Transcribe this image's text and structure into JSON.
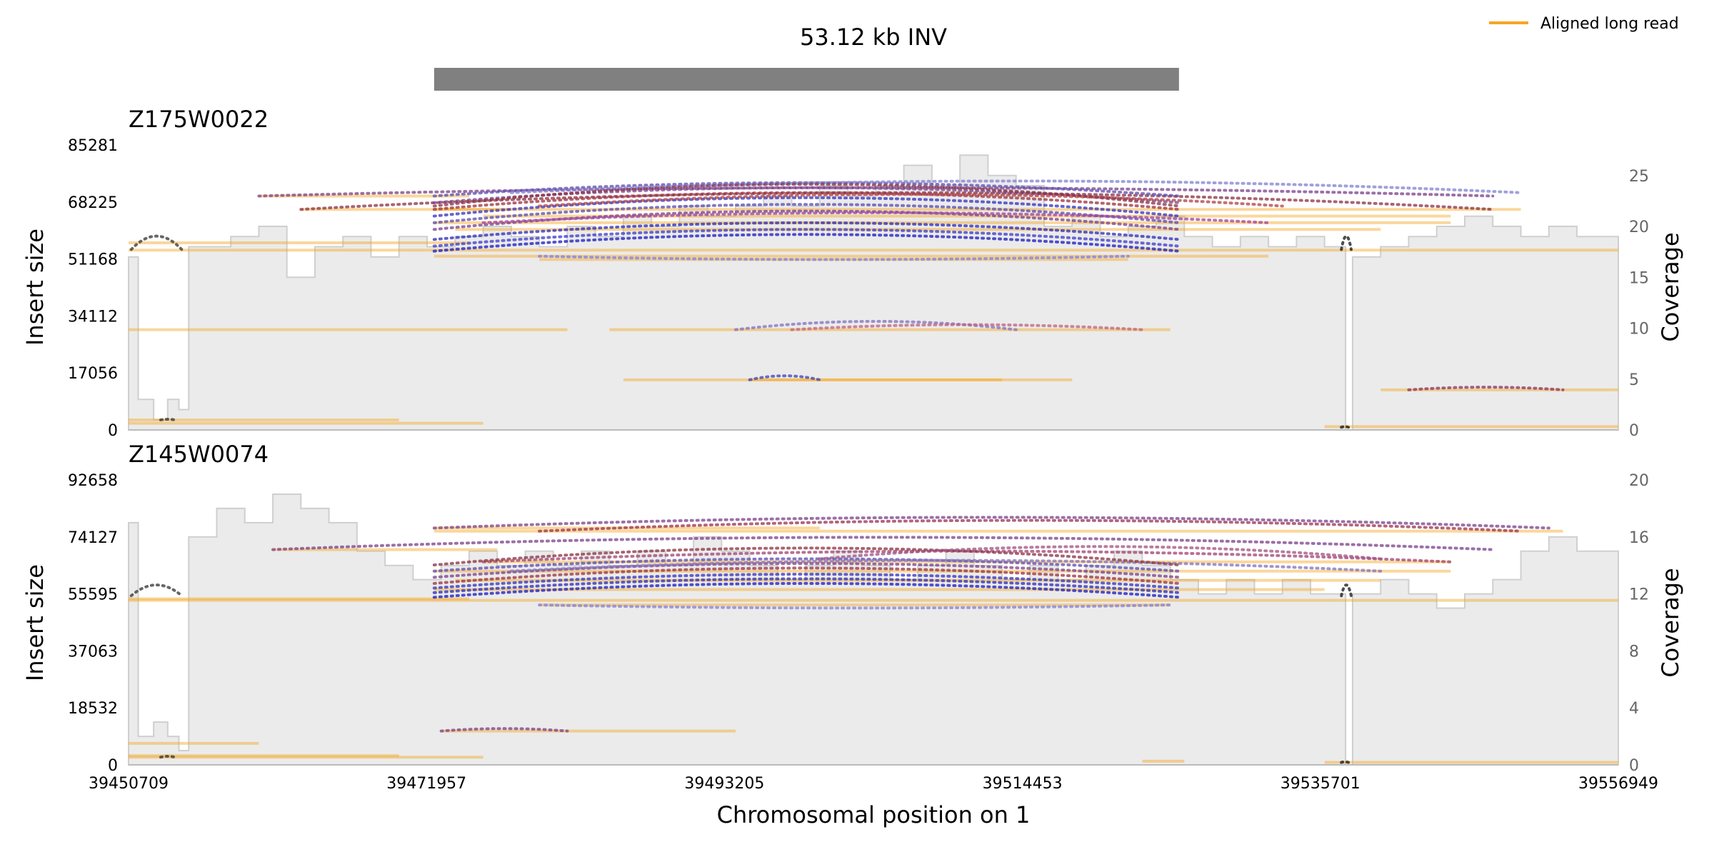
{
  "chart_data": {
    "type": "genome-sv-plot",
    "title": "53.12 kb INV",
    "sv_region": {
      "start": 39472500,
      "end": 39525620
    },
    "legend": [
      {
        "label": "Aligned long read",
        "color": "#f5a623"
      }
    ],
    "xlabel": "Chromosomal position on 1",
    "x_range": [
      39450709,
      39556949
    ],
    "x_ticks": [
      "39450709",
      "39471957",
      "39493205",
      "39514453",
      "39535701",
      "39556949"
    ],
    "panels": [
      {
        "sample": "Z175W0022",
        "ylabel_left": "Insert size",
        "ylabel_right": "Coverage",
        "insert_ticks": [
          "0",
          "17056",
          "34112",
          "51168",
          "68225",
          "85281"
        ],
        "insert_max": 85281,
        "coverage_ticks": [
          "0",
          "5",
          "10",
          "15",
          "20",
          "25"
        ],
        "coverage_max": 28,
        "coverage": [
          [
            39450709,
            17
          ],
          [
            39451400,
            3
          ],
          [
            39452500,
            1
          ],
          [
            39453500,
            3
          ],
          [
            39454300,
            2
          ],
          [
            39455000,
            18
          ],
          [
            39458000,
            19
          ],
          [
            39460000,
            20
          ],
          [
            39462000,
            15
          ],
          [
            39464000,
            18
          ],
          [
            39466000,
            19
          ],
          [
            39468000,
            17
          ],
          [
            39470000,
            19
          ],
          [
            39472000,
            18
          ],
          [
            39474000,
            19
          ],
          [
            39476000,
            20
          ],
          [
            39478000,
            19
          ],
          [
            39480000,
            18
          ],
          [
            39482000,
            20
          ],
          [
            39484000,
            19
          ],
          [
            39486000,
            21
          ],
          [
            39488000,
            20
          ],
          [
            39490000,
            22
          ],
          [
            39492000,
            21
          ],
          [
            39494000,
            22
          ],
          [
            39496000,
            23
          ],
          [
            39498000,
            22
          ],
          [
            39500000,
            24
          ],
          [
            39502000,
            23
          ],
          [
            39504000,
            24
          ],
          [
            39506000,
            26
          ],
          [
            39508000,
            24
          ],
          [
            39510000,
            27
          ],
          [
            39512000,
            25
          ],
          [
            39514000,
            24
          ],
          [
            39516000,
            20
          ],
          [
            39518000,
            21
          ],
          [
            39520000,
            19
          ],
          [
            39522000,
            20
          ],
          [
            39524000,
            21
          ],
          [
            39526000,
            19
          ],
          [
            39528000,
            18
          ],
          [
            39530000,
            19
          ],
          [
            39532000,
            18
          ],
          [
            39534000,
            19
          ],
          [
            39536000,
            18
          ],
          [
            39537500,
            0
          ],
          [
            39538000,
            17
          ],
          [
            39540000,
            18
          ],
          [
            39542000,
            19
          ],
          [
            39544000,
            20
          ],
          [
            39546000,
            21
          ],
          [
            39548000,
            20
          ],
          [
            39550000,
            19
          ],
          [
            39552000,
            20
          ],
          [
            39554000,
            19
          ],
          [
            39556949,
            18
          ]
        ],
        "reads": [
          [
            39450709,
            39475000,
            56000
          ],
          [
            39450709,
            39556949,
            53800
          ],
          [
            39450709,
            39470000,
            3000
          ],
          [
            39450709,
            39476000,
            2000
          ],
          [
            39450709,
            39482000,
            30000
          ],
          [
            39460000,
            39475000,
            70000
          ],
          [
            39463000,
            39478000,
            66000
          ],
          [
            39472500,
            39545000,
            62000
          ],
          [
            39472500,
            39550000,
            66000
          ],
          [
            39474000,
            39540000,
            60000
          ],
          [
            39480000,
            39522000,
            51000
          ],
          [
            39485000,
            39525000,
            30000
          ],
          [
            39486000,
            39513000,
            15000
          ],
          [
            39495000,
            39518000,
            15000
          ],
          [
            39536000,
            39556949,
            1000
          ],
          [
            39540000,
            39556949,
            12000
          ],
          [
            39472500,
            39532000,
            52000
          ],
          [
            39476000,
            39545000,
            64000
          ]
        ],
        "arcs": [
          [
            39460000,
            39548000,
            70000,
            72500,
            "#7a3f8a"
          ],
          [
            39463000,
            39548000,
            66000,
            71000,
            "#8a3040"
          ],
          [
            39472500,
            39525620,
            70000,
            74000,
            "#5a4ab0"
          ],
          [
            39472500,
            39525620,
            68000,
            72500,
            "#7a3f8a"
          ],
          [
            39472500,
            39525620,
            66000,
            71000,
            "#9a3040"
          ],
          [
            39472500,
            39525620,
            64000,
            69500,
            "#3030c0"
          ],
          [
            39472500,
            39525620,
            62000,
            67500,
            "#5a4ab0"
          ],
          [
            39472500,
            39525620,
            60000,
            65500,
            "#7a3f8a"
          ],
          [
            39472500,
            39525620,
            57000,
            62000,
            "#2a2ab8"
          ],
          [
            39472500,
            39525620,
            55000,
            60000,
            "#3a3ac8"
          ],
          [
            39472500,
            39525620,
            53500,
            58500,
            "#1818c0"
          ],
          [
            39478000,
            39550000,
            71000,
            74500,
            "#8080d0"
          ],
          [
            39476000,
            39532000,
            62000,
            65000,
            "#a040a0"
          ],
          [
            39480000,
            39522000,
            52000,
            51000,
            "#8080e0"
          ],
          [
            39494000,
            39514000,
            30000,
            32500,
            "#8070c0"
          ],
          [
            39498000,
            39523000,
            30000,
            31500,
            "#c06080"
          ],
          [
            39495000,
            39500000,
            15000,
            16200,
            "#4040b0"
          ],
          [
            39542000,
            39553000,
            12000,
            12800,
            "#8a3060"
          ],
          [
            39450900,
            39454500,
            54000,
            58000,
            "#333333"
          ],
          [
            39537200,
            39537900,
            54000,
            58000,
            "#111111"
          ],
          [
            39453000,
            39454000,
            3000,
            3200,
            "#333333"
          ],
          [
            39537200,
            39537700,
            800,
            1000,
            "#111111"
          ],
          [
            39472500,
            39525620,
            67000,
            73500,
            "#8a3040"
          ],
          [
            39480000,
            39533000,
            67000,
            70500,
            "#b04040"
          ]
        ]
      },
      {
        "sample": "Z145W0074",
        "ylabel_left": "Insert size",
        "ylabel_right": "Coverage",
        "insert_ticks": [
          "0",
          "18532",
          "37063",
          "55595",
          "74127",
          "92658"
        ],
        "insert_max": 92658,
        "coverage_ticks": [
          "0",
          "4",
          "8",
          "12",
          "16",
          "20"
        ],
        "coverage_max": 20,
        "coverage": [
          [
            39450709,
            17
          ],
          [
            39451400,
            2
          ],
          [
            39452500,
            3
          ],
          [
            39453500,
            2
          ],
          [
            39454300,
            1
          ],
          [
            39455000,
            16
          ],
          [
            39457000,
            18
          ],
          [
            39459000,
            17
          ],
          [
            39461000,
            19
          ],
          [
            39463000,
            18
          ],
          [
            39465000,
            17
          ],
          [
            39467000,
            15
          ],
          [
            39469000,
            14
          ],
          [
            39471000,
            13
          ],
          [
            39473000,
            14
          ],
          [
            39475000,
            15
          ],
          [
            39477000,
            14
          ],
          [
            39479000,
            15
          ],
          [
            39481000,
            14
          ],
          [
            39483000,
            15
          ],
          [
            39485000,
            14
          ],
          [
            39487000,
            15
          ],
          [
            39489000,
            14
          ],
          [
            39491000,
            16
          ],
          [
            39493000,
            15
          ],
          [
            39495000,
            14
          ],
          [
            39497000,
            13
          ],
          [
            39499000,
            14
          ],
          [
            39501000,
            15
          ],
          [
            39503000,
            14
          ],
          [
            39505000,
            13
          ],
          [
            39507000,
            14
          ],
          [
            39509000,
            15
          ],
          [
            39511000,
            14
          ],
          [
            39513000,
            13
          ],
          [
            39515000,
            14
          ],
          [
            39517000,
            13
          ],
          [
            39519000,
            14
          ],
          [
            39521000,
            15
          ],
          [
            39523000,
            14
          ],
          [
            39525000,
            13
          ],
          [
            39527000,
            12
          ],
          [
            39529000,
            13
          ],
          [
            39531000,
            12
          ],
          [
            39533000,
            13
          ],
          [
            39535000,
            12
          ],
          [
            39537500,
            0
          ],
          [
            39538000,
            12
          ],
          [
            39540000,
            13
          ],
          [
            39542000,
            12
          ],
          [
            39544000,
            11
          ],
          [
            39546000,
            12
          ],
          [
            39548000,
            13
          ],
          [
            39550000,
            15
          ],
          [
            39552000,
            16
          ],
          [
            39554000,
            15
          ],
          [
            39556949,
            14
          ]
        ],
        "reads": [
          [
            39450709,
            39475000,
            54000
          ],
          [
            39450709,
            39556949,
            53500
          ],
          [
            39450709,
            39470000,
            3000
          ],
          [
            39450709,
            39476000,
            2500
          ],
          [
            39450709,
            39460000,
            7000
          ],
          [
            39461000,
            39477000,
            70000
          ],
          [
            39472500,
            39500000,
            77000
          ],
          [
            39472500,
            39553000,
            76000
          ],
          [
            39472500,
            39545000,
            63000
          ],
          [
            39474000,
            39540000,
            60000
          ],
          [
            39480000,
            39525000,
            52000
          ],
          [
            39473000,
            39494000,
            11000
          ],
          [
            39536000,
            39556949,
            800
          ],
          [
            39523000,
            39526000,
            1200
          ],
          [
            39472500,
            39536000,
            57000
          ],
          [
            39476000,
            39545000,
            66000
          ]
        ],
        "arcs": [
          [
            39472500,
            39552000,
            77000,
            80500,
            "#7a3f8a"
          ],
          [
            39480000,
            39550000,
            76000,
            79500,
            "#9a3050"
          ],
          [
            39461000,
            39548000,
            70000,
            74000,
            "#7a3f8a"
          ],
          [
            39472500,
            39525620,
            63000,
            67000,
            "#5a4ab0"
          ],
          [
            39472500,
            39525620,
            61000,
            65500,
            "#7a3f8a"
          ],
          [
            39472500,
            39525620,
            59000,
            64000,
            "#9a3040"
          ],
          [
            39472500,
            39525620,
            57500,
            62000,
            "#3030c0"
          ],
          [
            39472500,
            39525620,
            56000,
            60500,
            "#2a2ab8"
          ],
          [
            39472500,
            39525620,
            54500,
            59000,
            "#1818c0"
          ],
          [
            39476000,
            39545000,
            66000,
            69500,
            "#a04070"
          ],
          [
            39478000,
            39540000,
            63000,
            66500,
            "#8070c0"
          ],
          [
            39480000,
            39525000,
            52000,
            51000,
            "#8080e0"
          ],
          [
            39473000,
            39482000,
            11000,
            11800,
            "#7a3f8a"
          ],
          [
            39450900,
            39454500,
            55000,
            58500,
            "#333333"
          ],
          [
            39537200,
            39537900,
            55000,
            58500,
            "#111111"
          ],
          [
            39453000,
            39454000,
            2500,
            2800,
            "#333333"
          ],
          [
            39537200,
            39537700,
            800,
            1000,
            "#111111"
          ],
          [
            39472500,
            39525620,
            65000,
            70500,
            "#8a3040"
          ],
          [
            39500000,
            39540000,
            67000,
            71000,
            "#a05080"
          ]
        ]
      }
    ]
  }
}
